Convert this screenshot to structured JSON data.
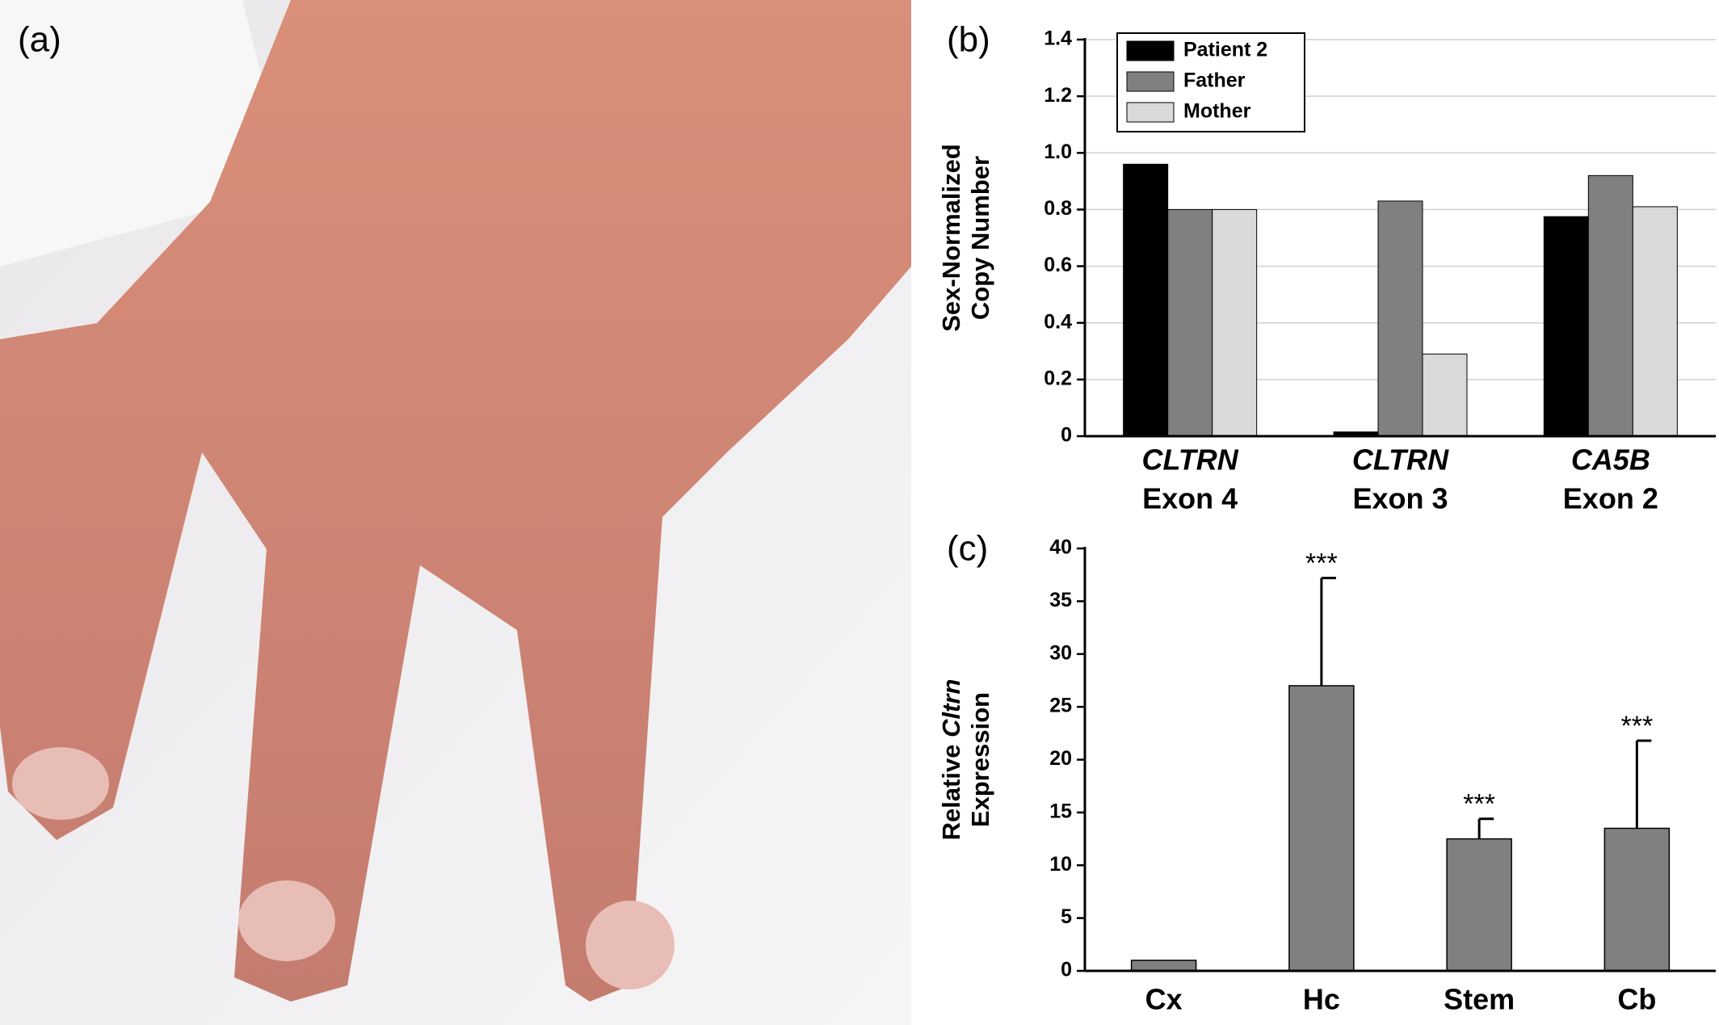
{
  "photo": {
    "label": "(a)"
  },
  "chart_data": [
    {
      "type": "bar",
      "panel": "(b)",
      "y_label": [
        "Sex-Normalized",
        "Copy Number"
      ],
      "categories": [
        [
          "CLTRN",
          "Exon 4"
        ],
        [
          "CLTRN",
          "Exon 3"
        ],
        [
          "CA5B",
          "Exon 2"
        ]
      ],
      "series": [
        {
          "name": "Patient 2",
          "color": "#000000",
          "values": [
            0.96,
            0.015,
            0.775
          ]
        },
        {
          "name": "Father",
          "color": "#808080",
          "values": [
            0.8,
            0.83,
            0.92
          ]
        },
        {
          "name": "Mother",
          "color": "#d9d9d9",
          "values": [
            0.8,
            0.29,
            0.81
          ]
        }
      ],
      "ylim": [
        0,
        1.4
      ],
      "yticks": [
        0,
        0.2,
        0.4,
        0.6,
        0.8,
        {
          "value": 1,
          "label": "1.0"
        },
        1.2,
        1.4
      ],
      "grid": true,
      "legend": "top-left"
    },
    {
      "type": "bar",
      "panel": "(c)",
      "y_label": [
        [
          "Relative ",
          "Cltrn"
        ],
        "Expression"
      ],
      "categories": [
        "Cx",
        "Hc",
        "Stem",
        "Cb"
      ],
      "values": [
        1,
        27,
        12.5,
        13.5
      ],
      "errors": [
        null,
        10.2,
        1.9,
        8.3
      ],
      "annotations": [
        null,
        "***",
        "***",
        "***"
      ],
      "color": "#808080",
      "ylim": [
        0,
        40
      ],
      "yticks": [
        0,
        5,
        10,
        15,
        20,
        25,
        30,
        35,
        40
      ],
      "grid": false
    }
  ]
}
